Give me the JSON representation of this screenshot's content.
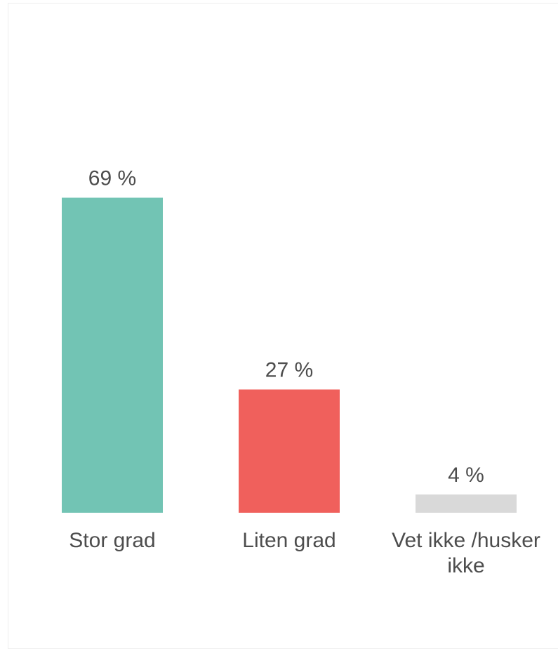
{
  "chart_data": {
    "type": "bar",
    "categories": [
      "Stor grad",
      "Liten grad",
      "Vet ikke /husker ikke"
    ],
    "category_lines": [
      [
        "Stor grad"
      ],
      [
        "Liten grad"
      ],
      [
        "Vet ikke /husker",
        "ikke"
      ]
    ],
    "values": [
      69,
      27,
      4
    ],
    "value_labels": [
      "69 %",
      "27 %",
      "4 %"
    ],
    "colors": [
      "#72c4b4",
      "#f0605c",
      "#d9d9d9"
    ],
    "title": "",
    "xlabel": "",
    "ylabel": "",
    "ylim": [
      0,
      100
    ],
    "grid": false,
    "legend": "none"
  }
}
